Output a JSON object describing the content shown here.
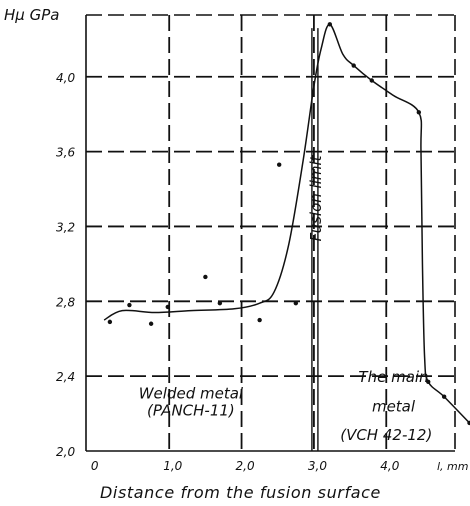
{
  "chart_data": {
    "type": "scatter",
    "ylabel": "Hμ GPa",
    "xlabel": "Distance from the fusion surface",
    "x_unit_label": "l, mm",
    "xlim": [
      -0.15,
      4.95
    ],
    "ylim": [
      2.0,
      4.33
    ],
    "x_ticks": [
      0,
      1.0,
      2.0,
      3.0,
      4.0
    ],
    "x_tick_labels": [
      "0",
      "1,0",
      "2,0",
      "3,0",
      "4,0"
    ],
    "y_ticks": [
      2.0,
      2.4,
      2.8,
      3.2,
      3.6,
      4.0
    ],
    "y_tick_labels": [
      "2,0",
      "2,4",
      "2,8",
      "3,2",
      "3,6",
      "4,0"
    ],
    "grid": true,
    "series": [
      {
        "name": "",
        "style": "points",
        "points": [
          [
            0.18,
            2.69
          ],
          [
            0.45,
            2.78
          ],
          [
            0.75,
            2.68
          ],
          [
            0.98,
            2.77
          ],
          [
            1.5,
            2.93
          ],
          [
            1.7,
            2.79
          ],
          [
            2.25,
            2.7
          ],
          [
            2.52,
            3.53
          ],
          [
            2.75,
            2.79
          ],
          [
            3.22,
            4.28
          ],
          [
            3.55,
            4.06
          ],
          [
            3.8,
            3.98
          ],
          [
            4.45,
            3.81
          ],
          [
            4.58,
            2.37
          ],
          [
            4.8,
            2.29
          ],
          [
            5.15,
            2.15
          ]
        ]
      },
      {
        "name": "",
        "style": "line",
        "points": [
          [
            0.1,
            2.7
          ],
          [
            0.35,
            2.75
          ],
          [
            0.8,
            2.74
          ],
          [
            1.3,
            2.75
          ],
          [
            1.9,
            2.76
          ],
          [
            2.25,
            2.79
          ],
          [
            2.45,
            2.85
          ],
          [
            2.65,
            3.1
          ],
          [
            2.85,
            3.55
          ],
          [
            3.0,
            3.95
          ],
          [
            3.1,
            4.15
          ],
          [
            3.22,
            4.28
          ],
          [
            3.4,
            4.12
          ],
          [
            3.55,
            4.06
          ],
          [
            3.8,
            3.98
          ],
          [
            4.1,
            3.9
          ],
          [
            4.45,
            3.81
          ],
          [
            4.48,
            3.6
          ],
          [
            4.5,
            3.0
          ],
          [
            4.53,
            2.5
          ],
          [
            4.58,
            2.37
          ],
          [
            4.8,
            2.29
          ],
          [
            5.15,
            2.15
          ]
        ]
      }
    ],
    "annotations": [
      {
        "text": "Fusion limit",
        "x": 3.07,
        "y": 3.12
      },
      {
        "text": "Welded metal",
        "x": 1.3,
        "y": 2.28
      },
      {
        "text": "(PANCH-11)",
        "x": 1.3,
        "y": 2.19
      },
      {
        "text": "The main",
        "x": 4.1,
        "y": 2.37
      },
      {
        "text": "metal",
        "x": 4.1,
        "y": 2.21
      },
      {
        "text": "(VCH 42-12)",
        "x": 4.0,
        "y": 2.06
      }
    ],
    "fusion_limit_x": 3.0
  }
}
